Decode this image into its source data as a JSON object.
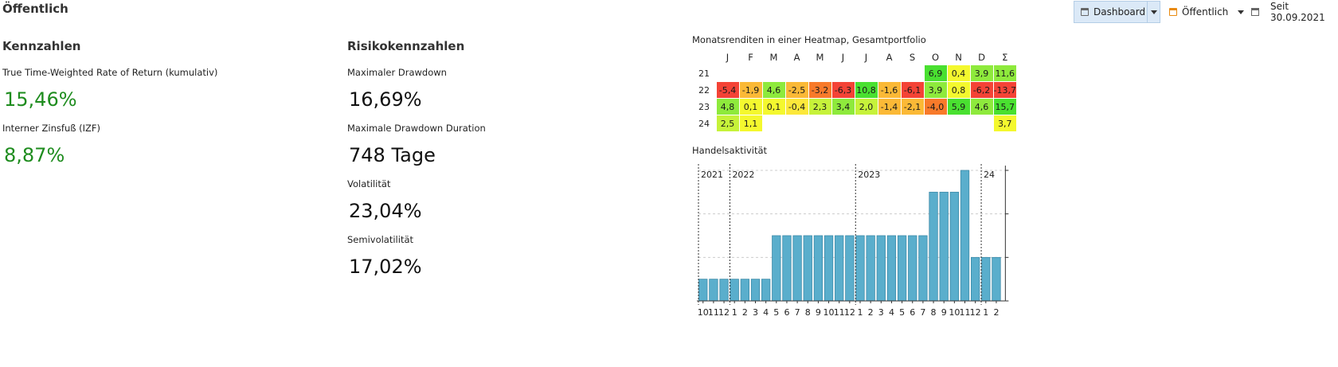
{
  "page": {
    "title": "Öffentlich"
  },
  "toolbar": {
    "dashboard_label": "Dashboard",
    "filter_label": "Öffentlich",
    "period_label": "Seit 30.09.2021",
    "dashboard_icon": "calendar-icon",
    "filter_icon": "filter-icon",
    "window_icon": "window-icon"
  },
  "kennzahlen": {
    "title": "Kennzahlen",
    "items": [
      {
        "label": "True Time-Weighted Rate of Return (kumulativ)",
        "value": "15,46%"
      },
      {
        "label": "Interner Zinsfuß (IZF)",
        "value": "8,87%"
      }
    ]
  },
  "risiko": {
    "title": "Risikokennzahlen",
    "items": [
      {
        "label": "Maximaler Drawdown",
        "value": "16,69%"
      },
      {
        "label": "Maximale Drawdown Duration",
        "value": "748 Tage"
      },
      {
        "label": "Volatilität",
        "value": "23,04%"
      },
      {
        "label": "Semivolatilität",
        "value": "17,02%"
      }
    ]
  },
  "heatmap": {
    "title": "Monatsrenditen in einer Heatmap, Gesamtportfolio",
    "months": [
      "J",
      "F",
      "M",
      "A",
      "M",
      "J",
      "J",
      "A",
      "S",
      "O",
      "N",
      "D",
      "Σ"
    ],
    "rows": [
      {
        "year": "21",
        "cells": [
          "",
          "",
          "",
          "",
          "",
          "",
          "",
          "",
          "",
          "6,9",
          "0,4",
          "3,9",
          "11,6"
        ]
      },
      {
        "year": "22",
        "cells": [
          "-5,4",
          "-1,9",
          "4,6",
          "-2,5",
          "-3,2",
          "-6,3",
          "10,8",
          "-1,6",
          "-6,1",
          "3,9",
          "0,8",
          "-6,2",
          "-13,7"
        ]
      },
      {
        "year": "23",
        "cells": [
          "4,8",
          "0,1",
          "0,1",
          "-0,4",
          "2,3",
          "3,4",
          "2,0",
          "-1,4",
          "-2,1",
          "-4,0",
          "5,9",
          "4,6",
          "15,7"
        ]
      },
      {
        "year": "24",
        "cells": [
          "2,5",
          "1,1",
          "",
          "",
          "",
          "",
          "",
          "",
          "",
          "",
          "",
          "",
          "3,7"
        ]
      }
    ]
  },
  "chart_data": {
    "type": "bar",
    "title": "Handelsaktivität",
    "categories": [
      "10",
      "11",
      "12",
      "1",
      "2",
      "3",
      "4",
      "5",
      "6",
      "7",
      "8",
      "9",
      "10",
      "11",
      "12",
      "1",
      "2",
      "3",
      "4",
      "5",
      "6",
      "7",
      "8",
      "9",
      "10",
      "11",
      "12",
      "1",
      "2"
    ],
    "values": [
      1,
      1,
      1,
      1,
      1,
      1,
      1,
      3,
      3,
      3,
      3,
      3,
      3,
      3,
      3,
      3,
      3,
      3,
      3,
      3,
      3,
      3,
      5,
      5,
      5,
      6,
      2,
      2,
      2
    ],
    "ylim": [
      0,
      6
    ],
    "yticks": [
      0,
      2,
      4,
      6
    ],
    "year_markers": [
      {
        "label": "2021",
        "before_index": 0
      },
      {
        "label": "2022",
        "before_index": 3
      },
      {
        "label": "2023",
        "before_index": 15
      },
      {
        "label": "24",
        "before_index": 27
      }
    ],
    "bar_color": "#5aaecc"
  }
}
